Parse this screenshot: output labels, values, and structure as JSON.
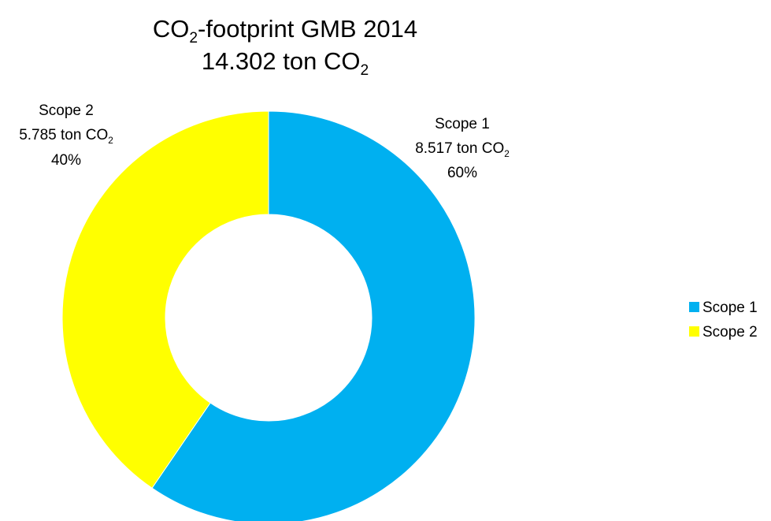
{
  "chart_data": {
    "type": "pie",
    "title_line1": {
      "main": "CO",
      "sub": "2",
      "rest": "-footprint GMB 2014"
    },
    "title_line2": {
      "main": "14.302 ton CO",
      "sub": "2"
    },
    "slices": [
      {
        "name": "Scope 1",
        "value": 8517,
        "value_label": "8.517 ton CO",
        "value_sub": "2",
        "percent_label": "60%",
        "color": "#00B0F0"
      },
      {
        "name": "Scope 2",
        "value": 5785,
        "value_label": "5.785 ton CO",
        "value_sub": "2",
        "percent_label": "40%",
        "color": "#FFFF00"
      }
    ],
    "legend": {
      "placement": "right",
      "items": [
        "Scope 1",
        "Scope 2"
      ]
    }
  }
}
